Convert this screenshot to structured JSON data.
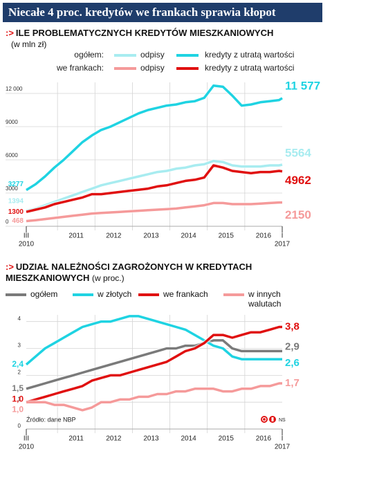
{
  "header": {
    "title": "Niecałe 4 proc. kredytów we frankach sprawia kłopot"
  },
  "chart_data": [
    {
      "type": "line",
      "title": "ILE PROBLEMATYCZNYCH KREDYTÓW MIESZKANIOWYCH",
      "subtitle": "(w mln zł)",
      "legend_groups": [
        "ogółem:",
        "we frankach:"
      ],
      "x": [
        "2010-03",
        "2010-06",
        "2010-09",
        "2010-12",
        "2011-03",
        "2011-06",
        "2011-09",
        "2011-12",
        "2012-03",
        "2012-06",
        "2012-09",
        "2012-12",
        "2013-03",
        "2013-06",
        "2013-09",
        "2013-12",
        "2014-03",
        "2014-06",
        "2014-09",
        "2014-12",
        "2015-03",
        "2015-06",
        "2015-09",
        "2015-12",
        "2016-03",
        "2016-06",
        "2016-09",
        "2016-12",
        "2017-01"
      ],
      "xlim": [
        "2010-03",
        "2017-01"
      ],
      "xticks": [
        {
          "value": "2010-03",
          "label": "III"
        },
        {
          "value": "2017-01",
          "label": "I"
        }
      ],
      "x_year_labels": [
        {
          "value": "2010-03",
          "label": "2010"
        },
        {
          "value": "2011-07",
          "label": "2011"
        },
        {
          "value": "2012-07",
          "label": "2012"
        },
        {
          "value": "2013-07",
          "label": "2013"
        },
        {
          "value": "2014-07",
          "label": "2014"
        },
        {
          "value": "2015-07",
          "label": "2015"
        },
        {
          "value": "2016-07",
          "label": "2016"
        },
        {
          "value": "2017-01",
          "label": "2017"
        }
      ],
      "x_minor_ticks": [
        "2011-01",
        "2012-01",
        "2013-01",
        "2014-01",
        "2015-01",
        "2016-01"
      ],
      "ylim": [
        0,
        13000
      ],
      "yticks": [
        0,
        3000,
        6000,
        9000,
        {
          "value": 12000,
          "label": "12 000"
        }
      ],
      "grid": true,
      "series": [
        {
          "name": "odpisy",
          "color": "#a8ecf0",
          "values": [
            1394,
            1600,
            1900,
            2200,
            2500,
            2800,
            3100,
            3400,
            3700,
            3900,
            4100,
            4300,
            4500,
            4700,
            4900,
            5000,
            5200,
            5300,
            5500,
            5600,
            5900,
            5800,
            5500,
            5400,
            5400,
            5400,
            5500,
            5500,
            5564
          ]
        },
        {
          "name": "kredyty z utratą wartości",
          "color": "#1fd3e2",
          "values": [
            3277,
            3800,
            4500,
            5300,
            6000,
            6800,
            7600,
            8200,
            8700,
            9000,
            9400,
            9800,
            10200,
            10500,
            10700,
            10900,
            11000,
            11200,
            11300,
            11600,
            12700,
            12600,
            11800,
            10900,
            11000,
            11200,
            11300,
            11400,
            11577
          ],
          "value_labels": [
            null,
            null,
            null,
            null,
            null,
            null,
            null,
            null,
            null,
            null,
            null,
            null,
            null,
            null,
            null,
            null,
            null,
            null,
            null,
            null,
            null,
            null,
            null,
            null,
            null,
            null,
            null,
            null,
            "11 577"
          ]
        },
        {
          "name": "odpisy",
          "color": "#f59a9a",
          "values": [
            468,
            550,
            650,
            750,
            850,
            950,
            1050,
            1150,
            1200,
            1250,
            1300,
            1350,
            1400,
            1450,
            1500,
            1550,
            1600,
            1700,
            1800,
            1900,
            2100,
            2100,
            2000,
            2000,
            2000,
            2050,
            2100,
            2150,
            2150
          ]
        },
        {
          "name": "kredyty z utratą wartości",
          "color": "#e01010",
          "values": [
            1300,
            1500,
            1700,
            2000,
            2200,
            2400,
            2600,
            2900,
            2900,
            3000,
            3100,
            3200,
            3300,
            3400,
            3600,
            3700,
            3900,
            4100,
            4200,
            4400,
            5500,
            5300,
            5000,
            4900,
            4800,
            4900,
            4900,
            5000,
            4962
          ]
        }
      ]
    },
    {
      "type": "line",
      "title": "UDZIAŁ NALEŻNOŚCI ZAGROŻONYCH W KREDYTACH MIESZKANIOWYCH",
      "subtitle": "(w proc.)",
      "x": [
        "2010-03",
        "2010-06",
        "2010-09",
        "2010-12",
        "2011-03",
        "2011-06",
        "2011-09",
        "2011-12",
        "2012-03",
        "2012-06",
        "2012-09",
        "2012-12",
        "2013-03",
        "2013-06",
        "2013-09",
        "2013-12",
        "2014-03",
        "2014-06",
        "2014-09",
        "2014-12",
        "2015-03",
        "2015-06",
        "2015-09",
        "2015-12",
        "2016-03",
        "2016-06",
        "2016-09",
        "2016-12",
        "2017-01"
      ],
      "xlim": [
        "2010-03",
        "2017-01"
      ],
      "xticks": [
        {
          "value": "2010-03",
          "label": "III"
        },
        {
          "value": "2017-01",
          "label": "I"
        }
      ],
      "x_year_labels": [
        {
          "value": "2010-03",
          "label": "2010"
        },
        {
          "value": "2011-07",
          "label": "2011"
        },
        {
          "value": "2012-07",
          "label": "2012"
        },
        {
          "value": "2013-07",
          "label": "2013"
        },
        {
          "value": "2014-07",
          "label": "2014"
        },
        {
          "value": "2015-07",
          "label": "2015"
        },
        {
          "value": "2016-07",
          "label": "2016"
        },
        {
          "value": "2017-01",
          "label": "2017"
        }
      ],
      "x_minor_ticks": [
        "2011-01",
        "2012-01",
        "2013-01",
        "2014-01",
        "2015-01",
        "2016-01"
      ],
      "ylim": [
        0,
        4.25
      ],
      "yticks": [
        0,
        1,
        2,
        3,
        4
      ],
      "grid": true,
      "series": [
        {
          "name": "ogółem",
          "color": "#7a7a7a",
          "values": [
            1.5,
            1.6,
            1.7,
            1.8,
            1.9,
            2.0,
            2.1,
            2.2,
            2.3,
            2.4,
            2.5,
            2.6,
            2.7,
            2.8,
            2.9,
            3.0,
            3.0,
            3.1,
            3.1,
            3.2,
            3.3,
            3.3,
            3.0,
            2.9,
            2.9,
            2.9,
            2.9,
            2.9,
            2.9
          ],
          "value_labels": [
            "1,5",
            null,
            null,
            null,
            null,
            null,
            null,
            null,
            null,
            null,
            null,
            null,
            null,
            null,
            null,
            null,
            null,
            null,
            null,
            null,
            null,
            null,
            null,
            null,
            null,
            null,
            null,
            null,
            "2,9"
          ]
        },
        {
          "name": "w złotych",
          "color": "#1fd3e2",
          "values": [
            2.4,
            2.7,
            3.0,
            3.2,
            3.4,
            3.6,
            3.8,
            3.9,
            4.0,
            4.0,
            4.1,
            4.2,
            4.2,
            4.1,
            4.0,
            3.9,
            3.8,
            3.7,
            3.5,
            3.3,
            3.1,
            3.0,
            2.7,
            2.6,
            2.6,
            2.6,
            2.6,
            2.6,
            2.6
          ],
          "value_labels": [
            "2,4",
            null,
            null,
            null,
            null,
            null,
            null,
            null,
            null,
            null,
            null,
            null,
            null,
            null,
            null,
            null,
            null,
            null,
            null,
            null,
            null,
            null,
            null,
            null,
            null,
            null,
            null,
            null,
            "2,6"
          ]
        },
        {
          "name": "we frankach",
          "color": "#e01010",
          "values": [
            1.0,
            1.1,
            1.2,
            1.3,
            1.4,
            1.5,
            1.6,
            1.8,
            1.9,
            2.0,
            2.0,
            2.1,
            2.2,
            2.3,
            2.4,
            2.5,
            2.7,
            2.9,
            3.0,
            3.2,
            3.5,
            3.5,
            3.4,
            3.5,
            3.6,
            3.6,
            3.7,
            3.8,
            3.8
          ],
          "value_labels": [
            "1,0",
            null,
            null,
            null,
            null,
            null,
            null,
            null,
            null,
            null,
            null,
            null,
            null,
            null,
            null,
            null,
            null,
            null,
            null,
            null,
            null,
            null,
            null,
            null,
            null,
            null,
            null,
            null,
            "3,8"
          ]
        },
        {
          "name": "w innych walutach",
          "color": "#f59a9a",
          "values": [
            1.0,
            1.0,
            1.0,
            0.9,
            0.9,
            0.8,
            0.7,
            0.8,
            1.0,
            1.0,
            1.1,
            1.1,
            1.2,
            1.2,
            1.3,
            1.3,
            1.4,
            1.4,
            1.5,
            1.5,
            1.5,
            1.4,
            1.4,
            1.5,
            1.5,
            1.6,
            1.6,
            1.7,
            1.7
          ],
          "value_labels": [
            "1,0",
            null,
            null,
            null,
            null,
            null,
            null,
            null,
            null,
            null,
            null,
            null,
            null,
            null,
            null,
            null,
            null,
            null,
            null,
            null,
            null,
            null,
            null,
            null,
            null,
            null,
            null,
            null,
            "1,7"
          ]
        }
      ]
    }
  ],
  "source": "Źródło: dane NBP",
  "credit": "NS"
}
